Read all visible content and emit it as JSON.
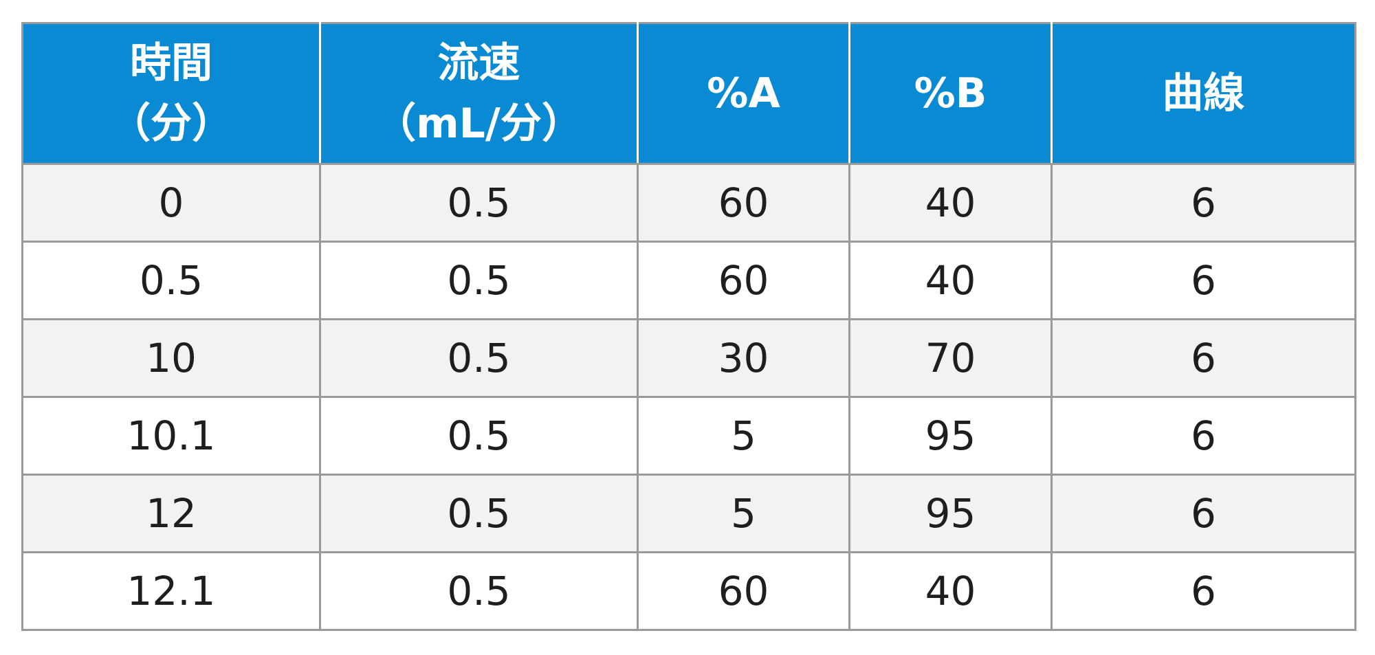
{
  "table": {
    "headers": [
      [
        "時間",
        "（分）"
      ],
      [
        "流速",
        "（mL/分）"
      ],
      [
        "%A"
      ],
      [
        "%B"
      ],
      [
        "曲線"
      ]
    ],
    "rows": [
      [
        "0",
        "0.5",
        "60",
        "40",
        "6"
      ],
      [
        "0.5",
        "0.5",
        "60",
        "40",
        "6"
      ],
      [
        "10",
        "0.5",
        "30",
        "70",
        "6"
      ],
      [
        "10.1",
        "0.5",
        "5",
        "95",
        "6"
      ],
      [
        "12",
        "0.5",
        "5",
        "95",
        "6"
      ],
      [
        "12.1",
        "0.5",
        "60",
        "40",
        "6"
      ]
    ]
  },
  "colors": {
    "header_bg": "#0a8ad2",
    "header_text": "#ffffff",
    "row_alt_bg": "#f2f2f4",
    "border": "#9a9a9a",
    "cell_text": "#1e1e1e"
  }
}
